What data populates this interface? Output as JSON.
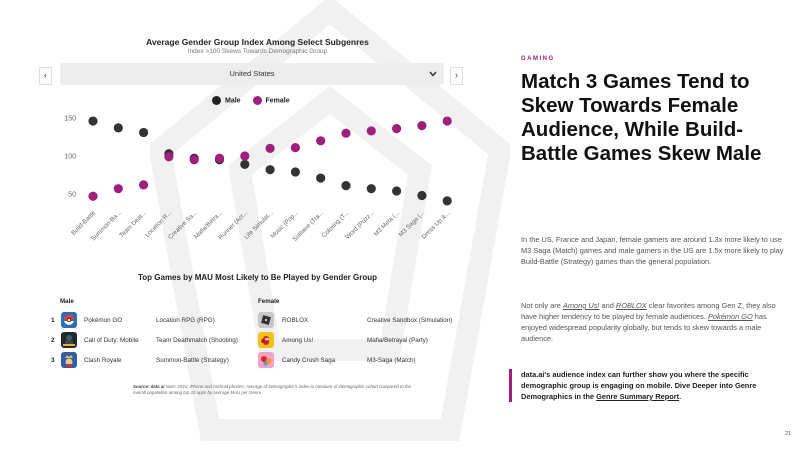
{
  "chart_data": {
    "type": "scatter",
    "title": "Average Gender Group Index Among Select Subgenres",
    "subtitle": "Index >100 Skews Towards Demographic Group",
    "xlabel": "",
    "ylabel": "",
    "ylim": [
      35,
      160
    ],
    "yticks": [
      50,
      100,
      150
    ],
    "categories": [
      "Build-Battle",
      "Summon-Ba...",
      "Team Deat...",
      "Location R...",
      "Creative Sa...",
      "Mafia/Betra...",
      "Runner (Act...",
      "Life Simulat...",
      "Music (Pop...",
      "Solitaire (Tra...",
      "Coloring (T...",
      "Word (Puzz...",
      "M3 Meta (...",
      "M3 Saga (...",
      "Dress Up &..."
    ],
    "series": [
      {
        "name": "Male",
        "color": "#333333",
        "values": [
          146,
          137,
          131,
          103,
          97,
          95,
          89,
          82,
          79,
          71,
          61,
          57,
          54,
          48,
          41
        ]
      },
      {
        "name": "Female",
        "color": "#9e1f7c",
        "values": [
          47,
          57,
          62,
          99,
          95,
          97,
          100,
          110,
          111,
          120,
          130,
          133,
          136,
          140,
          146
        ]
      }
    ]
  },
  "filter": {
    "prev_icon": "‹",
    "next_icon": "›",
    "selected": "United States"
  },
  "table": {
    "title": "Top Games by MAU Most Likely to Be Played by Gender Group",
    "male_header": "Male",
    "female_header": "Female",
    "rows": [
      {
        "rank": "1",
        "male_game": "Pokémon GO",
        "male_genre": "Location RPG (RPG)",
        "female_game": "ROBLOX",
        "female_genre": "Creative Sandbox (Simulation)"
      },
      {
        "rank": "2",
        "male_game": "Call of Duty: Mobile",
        "male_genre": "Team Deathmatch (Shooting)",
        "female_game": "Among Us!",
        "female_genre": "Mafia/Betrayal (Party)"
      },
      {
        "rank": "3",
        "male_game": "Clash Royale",
        "male_genre": "Summon-Battle (Strategy)",
        "female_game": "Candy Crush Saga",
        "female_genre": "M3-Saga (Match)"
      }
    ]
  },
  "footer": {
    "source_label": "Source: data ai",
    "note": "Note: 2021; iPhone and Android phones; Average of Demographic's index to measure of Demographic cohort compared to the overall population among top 10 apps by average MAU per Genre"
  },
  "right": {
    "category": "GAMING",
    "headline": "Match 3 Games Tend to Skew Towards Female Audience, While Build-Battle Games Skew Male",
    "para1": "In the US, France and Japan, female gamers are around 1.3x more likely to use M3 Saga (Match) games and male gamers in the US are 1.5x more likely to play Build-Battle (Strategy) games than the general population.",
    "para2_a": "Not only are ",
    "para2_link1": "Among Us!",
    "para2_b": " and ",
    "para2_link2": "ROBLOX",
    "para2_c": " clear favorites among Gen Z, they also have higher tendency to be played by female audiences. ",
    "para2_link3": "Pokémon GO",
    "para2_d": " has enjoyed widespread popularity globally, but tends to skew towards a male audience.",
    "callout_text": "data.ai's audience index can further show you where the specific demographic group is engaging on mobile. Dive Deeper into Genre Demographics in the ",
    "callout_link": "Genre Summary Report",
    "callout_end": ".",
    "page_number": "21"
  }
}
